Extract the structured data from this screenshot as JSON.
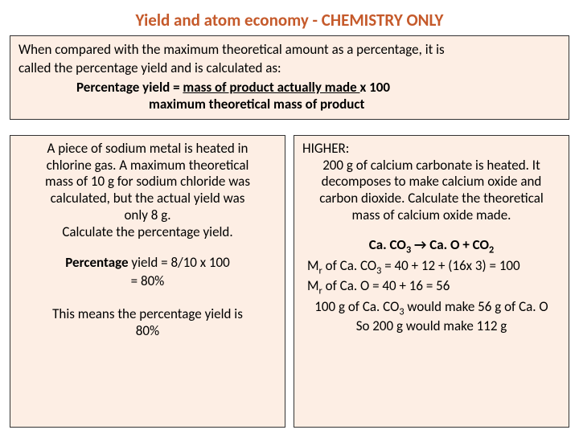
{
  "title": "Yield and atom economy - CHEMISTRY ONLY",
  "top": {
    "intro1": "When compared with the maximum theoretical amount as a percentage, it is",
    "intro2": "called the percentage yield and is calculated as:",
    "formula_lhs": "Percentage yield = ",
    "formula_numer": "   mass of product actually made     ",
    "formula_times": "  x   100",
    "formula_denom": "maximum theoretical mass of product"
  },
  "left": {
    "p1": "A piece of sodium metal is heated in",
    "p2": "chlorine gas.  A maximum theoretical",
    "p3": "mass of 10 g for sodium chloride was",
    "p4": "calculated, but the actual yield was",
    "p5": "only 8 g.",
    "p6": "Calculate the percentage yield.",
    "calc1a": "Percentage",
    "calc1b": " yield = 8/10 x 100",
    "calc2": "= 80%",
    "meaning1": "This means the percentage yield is",
    "meaning2": "80%"
  },
  "right": {
    "higher": "HIGHER:",
    "h1": "200 g of calcium carbonate is heated.  It",
    "h2": "decomposes to make calcium oxide and",
    "h3": "carbon dioxide.  Calculate the theoretical",
    "h4": "mass of calcium oxide made.",
    "eq_l": "Ca. CO",
    "eq_l_sub": "3",
    "eq_arrow": " → ",
    "eq_r1": "Ca. O + CO",
    "eq_r1_sub": "2",
    "mr1a": "M",
    "mr1a_sub": "r",
    "mr1b": " of  Ca. CO",
    "mr1b_sub": "3",
    "mr1c": " = 40 + 12 + (16x 3) = 100",
    "mr2a": "M",
    "mr2a_sub": "r",
    "mr2b": " of Ca. O     = 40 + 16 = 56",
    "c1a": "100 g of Ca. CO",
    "c1a_sub": "3",
    "c1b": " would make 56 g of Ca. O",
    "c2": "So 200 g would make 112 g"
  }
}
